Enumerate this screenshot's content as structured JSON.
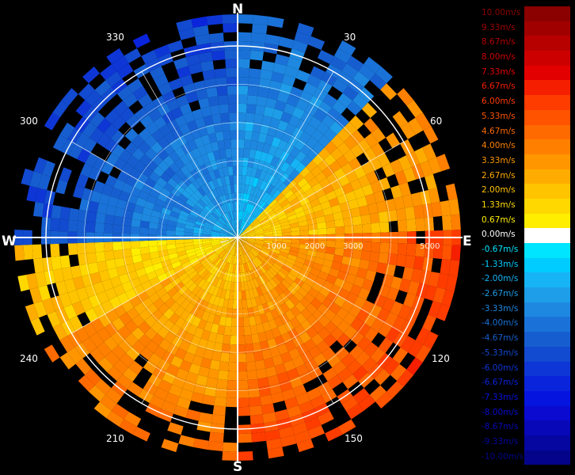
{
  "compass": {
    "north": "N",
    "south": "S",
    "east": "E",
    "west": "W"
  },
  "azimuth_labels": [
    "30",
    "60",
    "120",
    "150",
    "210",
    "240",
    "300",
    "330"
  ],
  "colors": {
    "background": "#000000",
    "rings": "#ffffff",
    "zero_band": "#ffffff"
  },
  "chart_data": {
    "type": "heatmap",
    "title": "",
    "projection": "polar",
    "radial_axis": {
      "min": 0,
      "max": 5000,
      "ring_step": 1000,
      "tick_labels": [
        "1000",
        "2000",
        "3000",
        "5000"
      ]
    },
    "angular_axis": {
      "labels": [
        "30",
        "60",
        "120",
        "150",
        "210",
        "240",
        "300",
        "330"
      ],
      "step_deg": 30,
      "zero_at": "north",
      "direction": "clockwise"
    },
    "color_scale": {
      "unit": "m/s",
      "entries": [
        {
          "label": "10.00m/s",
          "value": 10.0,
          "color": "#8b0000"
        },
        {
          "label": "9.33m/s",
          "value": 9.33,
          "color": "#a10000"
        },
        {
          "label": "8.67m/s",
          "value": 8.67,
          "color": "#b70000"
        },
        {
          "label": "8.00m/s",
          "value": 8.0,
          "color": "#cd0000"
        },
        {
          "label": "7.33m/s",
          "value": 7.33,
          "color": "#e30000"
        },
        {
          "label": "6.67m/s",
          "value": 6.67,
          "color": "#f51f00"
        },
        {
          "label": "6.00m/s",
          "value": 6.0,
          "color": "#ff3c00"
        },
        {
          "label": "5.33m/s",
          "value": 5.33,
          "color": "#ff5300"
        },
        {
          "label": "4.67m/s",
          "value": 4.67,
          "color": "#ff6a00"
        },
        {
          "label": "4.00m/s",
          "value": 4.0,
          "color": "#ff8000"
        },
        {
          "label": "3.33m/s",
          "value": 3.33,
          "color": "#ff9600"
        },
        {
          "label": "2.67m/s",
          "value": 2.67,
          "color": "#ffac00"
        },
        {
          "label": "2.00m/s",
          "value": 2.0,
          "color": "#ffc400"
        },
        {
          "label": "1.33m/s",
          "value": 1.33,
          "color": "#ffd800"
        },
        {
          "label": "0.67m/s",
          "value": 0.67,
          "color": "#ffee00"
        },
        {
          "label": "0.00m/s",
          "value": 0.0,
          "color": "#ffffff"
        },
        {
          "label": "-0.67m/s",
          "value": -0.67,
          "color": "#00e5ff"
        },
        {
          "label": "-1.33m/s",
          "value": -1.33,
          "color": "#00ccff"
        },
        {
          "label": "-2.00m/s",
          "value": -2.0,
          "color": "#16b4f5"
        },
        {
          "label": "-2.67m/s",
          "value": -2.67,
          "color": "#1e9ee8"
        },
        {
          "label": "-3.33m/s",
          "value": -3.33,
          "color": "#1e88e0"
        },
        {
          "label": "-4.00m/s",
          "value": -4.0,
          "color": "#1a72d8"
        },
        {
          "label": "-4.67m/s",
          "value": -4.67,
          "color": "#165ed0"
        },
        {
          "label": "-5.33m/s",
          "value": -5.33,
          "color": "#124ad0"
        },
        {
          "label": "-6.00m/s",
          "value": -6.0,
          "color": "#0e36d6"
        },
        {
          "label": "-6.67m/s",
          "value": -6.67,
          "color": "#0a24dc"
        },
        {
          "label": "-7.33m/s",
          "value": -7.33,
          "color": "#0614e0"
        },
        {
          "label": "-8.00m/s",
          "value": -8.0,
          "color": "#0a0ad0"
        },
        {
          "label": "-8.67m/s",
          "value": -8.67,
          "color": "#0808b8"
        },
        {
          "label": "-9.33m/s",
          "value": -9.33,
          "color": "#0606a0"
        },
        {
          "label": "-10.00m/s",
          "value": -10.0,
          "color": "#04048a"
        }
      ]
    },
    "sectors": [
      {
        "from_deg": 0,
        "to_deg": 45,
        "velocity": -3.0
      },
      {
        "from_deg": 45,
        "to_deg": 90,
        "velocity": 2.5
      },
      {
        "from_deg": 90,
        "to_deg": 180,
        "velocity": 4.0
      },
      {
        "from_deg": 180,
        "to_deg": 240,
        "velocity": 3.0
      },
      {
        "from_deg": 240,
        "to_deg": 270,
        "velocity": 1.5
      },
      {
        "from_deg": 270,
        "to_deg": 360,
        "velocity": -4.0
      }
    ],
    "grid": true
  }
}
